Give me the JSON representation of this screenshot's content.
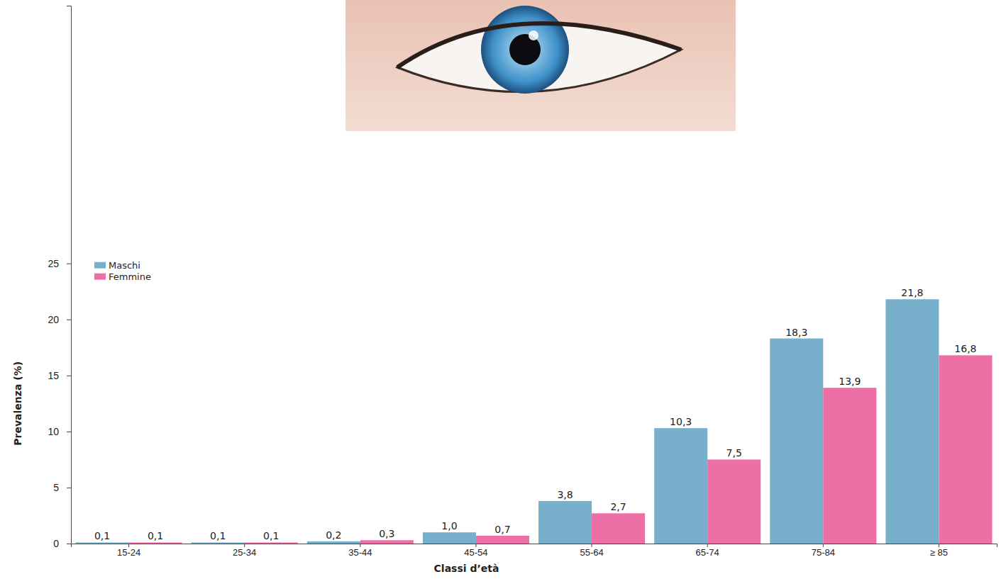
{
  "chart_data": {
    "type": "bar",
    "x_label": "Classi d’età",
    "y_label": "Prevalenza (%)",
    "categories": [
      "15-24",
      "25-34",
      "35-44",
      "45-54",
      "55-64",
      "65-74",
      "75-84",
      "≥ 85"
    ],
    "series": [
      {
        "name": "Maschi",
        "color": "#78afca",
        "values": [
          0.1,
          0.1,
          0.2,
          1.0,
          3.8,
          10.3,
          18.3,
          21.8
        ],
        "value_labels": [
          "0,1",
          "0,1",
          "0,2",
          "1,0",
          "3,8",
          "10,3",
          "18,3",
          "21,8"
        ]
      },
      {
        "name": "Femmine",
        "color": "#ec6fa6",
        "values": [
          0.1,
          0.1,
          0.3,
          0.7,
          2.7,
          7.5,
          13.9,
          16.8
        ],
        "value_labels": [
          "0,1",
          "0,1",
          "0,3",
          "0,7",
          "2,7",
          "7,5",
          "13,9",
          "16,8"
        ]
      }
    ],
    "ylim": [
      0,
      48
    ],
    "yticks": [
      0,
      5,
      10,
      15,
      20,
      25
    ],
    "grid": false,
    "legend": "upper left",
    "data_labels": true
  }
}
